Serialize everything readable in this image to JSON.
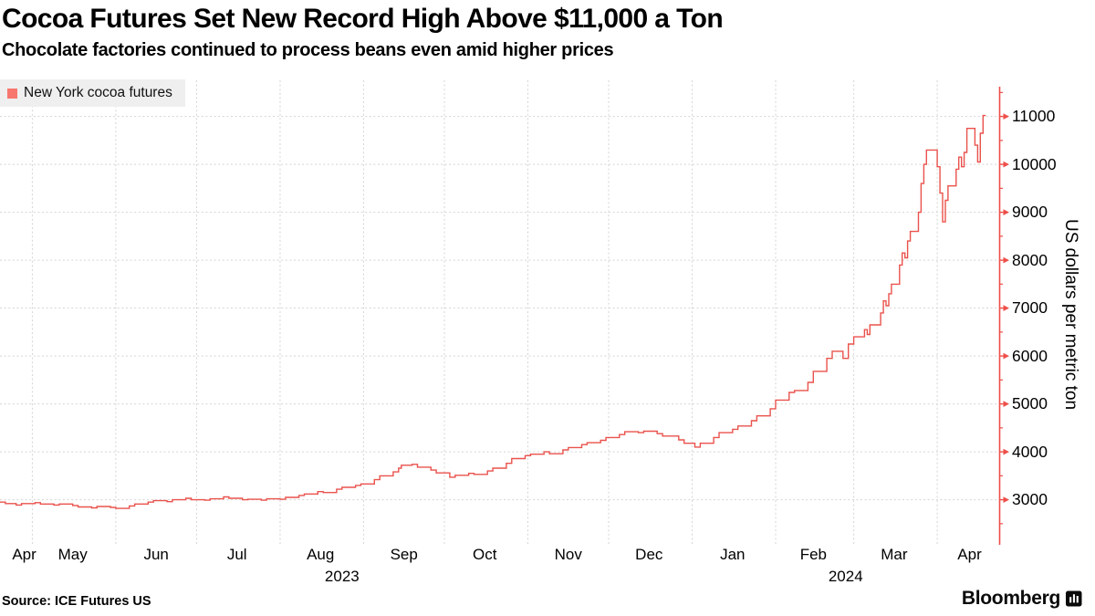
{
  "header": {
    "title": "Cocoa Futures Set New Record High Above $11,000 a Ton",
    "subtitle": "Chocolate factories continued to process beans even amid higher prices"
  },
  "legend": {
    "label": "New York cocoa futures"
  },
  "y_axis": {
    "title": "US dollars per metric ton",
    "ticks": [
      3000,
      4000,
      5000,
      6000,
      7000,
      8000,
      9000,
      10000,
      11000
    ],
    "minor_step": 500
  },
  "x_axis": {
    "ticks": [
      {
        "label": "Apr",
        "date": "2023-04-28"
      },
      {
        "label": "May",
        "date": "2023-05-16"
      },
      {
        "label": "Jun",
        "date": "2023-06-16"
      },
      {
        "label": "Jul",
        "date": "2023-07-16"
      },
      {
        "label": "Aug",
        "date": "2023-08-16"
      },
      {
        "label": "Sep",
        "date": "2023-09-16"
      },
      {
        "label": "Oct",
        "date": "2023-10-16"
      },
      {
        "label": "Nov",
        "date": "2023-11-16"
      },
      {
        "label": "Dec",
        "date": "2023-12-16"
      },
      {
        "label": "Jan",
        "date": "2024-01-16"
      },
      {
        "label": "Feb",
        "date": "2024-02-15"
      },
      {
        "label": "Mar",
        "date": "2024-03-16"
      },
      {
        "label": "Apr",
        "date": "2024-04-13"
      }
    ],
    "year_ticks": [
      {
        "label": "2023",
        "date": "2023-08-24"
      },
      {
        "label": "2024",
        "date": "2024-02-27"
      }
    ]
  },
  "footer": {
    "source": "Source: ICE Futures US",
    "brand": "Bloomberg",
    "brand_icon": "bloomberg-chart-bubble"
  },
  "colors": {
    "series": "#ea524c",
    "axis": "#ef4f49",
    "grid": "#d4d4d4",
    "legend_swatch": "#f7766f",
    "legend_bg": "#efefef",
    "text": "#000000"
  },
  "chart_data": {
    "type": "line",
    "style": "daily-bar-step",
    "title": "Cocoa Futures Set New Record High Above $11,000 a Ton",
    "ylabel": "US dollars per metric ton",
    "ylim": [
      2060,
      11750
    ],
    "x_domain": [
      "2023-04-19",
      "2024-04-24"
    ],
    "grid": "both-dashed",
    "legend_position": "top-left",
    "series": [
      {
        "name": "New York cocoa futures",
        "points": [
          [
            "2023-04-19",
            2950
          ],
          [
            "2023-04-21",
            2920
          ],
          [
            "2023-04-25",
            2890
          ],
          [
            "2023-04-27",
            2920
          ],
          [
            "2023-05-02",
            2940
          ],
          [
            "2023-05-04",
            2910
          ],
          [
            "2023-05-09",
            2890
          ],
          [
            "2023-05-11",
            2910
          ],
          [
            "2023-05-16",
            2880
          ],
          [
            "2023-05-18",
            2850
          ],
          [
            "2023-05-23",
            2830
          ],
          [
            "2023-05-25",
            2860
          ],
          [
            "2023-05-30",
            2840
          ],
          [
            "2023-06-01",
            2820
          ],
          [
            "2023-06-06",
            2870
          ],
          [
            "2023-06-08",
            2910
          ],
          [
            "2023-06-13",
            2950
          ],
          [
            "2023-06-15",
            2980
          ],
          [
            "2023-06-20",
            2960
          ],
          [
            "2023-06-22",
            3000
          ],
          [
            "2023-06-27",
            3030
          ],
          [
            "2023-06-29",
            3000
          ],
          [
            "2023-07-04",
            2990
          ],
          [
            "2023-07-06",
            3020
          ],
          [
            "2023-07-11",
            3060
          ],
          [
            "2023-07-13",
            3030
          ],
          [
            "2023-07-18",
            3000
          ],
          [
            "2023-07-20",
            3010
          ],
          [
            "2023-07-25",
            2990
          ],
          [
            "2023-07-27",
            3020
          ],
          [
            "2023-08-01",
            3010
          ],
          [
            "2023-08-03",
            3050
          ],
          [
            "2023-08-08",
            3090
          ],
          [
            "2023-08-10",
            3120
          ],
          [
            "2023-08-15",
            3170
          ],
          [
            "2023-08-17",
            3150
          ],
          [
            "2023-08-22",
            3220
          ],
          [
            "2023-08-24",
            3260
          ],
          [
            "2023-08-29",
            3300
          ],
          [
            "2023-08-31",
            3330
          ],
          [
            "2023-09-05",
            3420
          ],
          [
            "2023-09-07",
            3500
          ],
          [
            "2023-09-12",
            3580
          ],
          [
            "2023-09-14",
            3660
          ],
          [
            "2023-09-15",
            3720
          ],
          [
            "2023-09-19",
            3740
          ],
          [
            "2023-09-21",
            3680
          ],
          [
            "2023-09-26",
            3620
          ],
          [
            "2023-09-28",
            3560
          ],
          [
            "2023-10-03",
            3470
          ],
          [
            "2023-10-05",
            3510
          ],
          [
            "2023-10-10",
            3550
          ],
          [
            "2023-10-12",
            3530
          ],
          [
            "2023-10-17",
            3600
          ],
          [
            "2023-10-19",
            3660
          ],
          [
            "2023-10-24",
            3760
          ],
          [
            "2023-10-26",
            3860
          ],
          [
            "2023-10-31",
            3920
          ],
          [
            "2023-11-02",
            3950
          ],
          [
            "2023-11-07",
            4000
          ],
          [
            "2023-11-09",
            3960
          ],
          [
            "2023-11-14",
            4040
          ],
          [
            "2023-11-16",
            4090
          ],
          [
            "2023-11-21",
            4150
          ],
          [
            "2023-11-23",
            4190
          ],
          [
            "2023-11-28",
            4240
          ],
          [
            "2023-11-30",
            4300
          ],
          [
            "2023-12-05",
            4360
          ],
          [
            "2023-12-07",
            4420
          ],
          [
            "2023-12-12",
            4400
          ],
          [
            "2023-12-14",
            4430
          ],
          [
            "2023-12-19",
            4380
          ],
          [
            "2023-12-21",
            4330
          ],
          [
            "2023-12-27",
            4250
          ],
          [
            "2023-12-29",
            4180
          ],
          [
            "2024-01-02",
            4100
          ],
          [
            "2024-01-04",
            4180
          ],
          [
            "2024-01-09",
            4300
          ],
          [
            "2024-01-11",
            4400
          ],
          [
            "2024-01-16",
            4470
          ],
          [
            "2024-01-18",
            4540
          ],
          [
            "2024-01-23",
            4650
          ],
          [
            "2024-01-25",
            4750
          ],
          [
            "2024-01-30",
            4900
          ],
          [
            "2024-02-01",
            5080
          ],
          [
            "2024-02-06",
            5240
          ],
          [
            "2024-02-08",
            5280
          ],
          [
            "2024-02-13",
            5450
          ],
          [
            "2024-02-15",
            5680
          ],
          [
            "2024-02-20",
            5950
          ],
          [
            "2024-02-22",
            6100
          ],
          [
            "2024-02-26",
            5950
          ],
          [
            "2024-02-28",
            6250
          ],
          [
            "2024-03-01",
            6400
          ],
          [
            "2024-03-05",
            6550
          ],
          [
            "2024-03-06",
            6450
          ],
          [
            "2024-03-07",
            6650
          ],
          [
            "2024-03-11",
            6900
          ],
          [
            "2024-03-12",
            7150
          ],
          [
            "2024-03-13",
            7050
          ],
          [
            "2024-03-14",
            7300
          ],
          [
            "2024-03-15",
            7500
          ],
          [
            "2024-03-18",
            7900
          ],
          [
            "2024-03-19",
            8150
          ],
          [
            "2024-03-20",
            8050
          ],
          [
            "2024-03-21",
            8400
          ],
          [
            "2024-03-22",
            8600
          ],
          [
            "2024-03-25",
            9000
          ],
          [
            "2024-03-26",
            9600
          ],
          [
            "2024-03-27",
            10000
          ],
          [
            "2024-03-28",
            10300
          ],
          [
            "2024-04-01",
            9950
          ],
          [
            "2024-04-02",
            9400
          ],
          [
            "2024-04-03",
            8800
          ],
          [
            "2024-04-04",
            9250
          ],
          [
            "2024-04-05",
            9550
          ],
          [
            "2024-04-08",
            9900
          ],
          [
            "2024-04-09",
            10150
          ],
          [
            "2024-04-10",
            9950
          ],
          [
            "2024-04-11",
            10250
          ],
          [
            "2024-04-12",
            10750
          ],
          [
            "2024-04-15",
            10400
          ],
          [
            "2024-04-16",
            10050
          ],
          [
            "2024-04-17",
            10650
          ],
          [
            "2024-04-18",
            11020
          ]
        ]
      }
    ]
  }
}
